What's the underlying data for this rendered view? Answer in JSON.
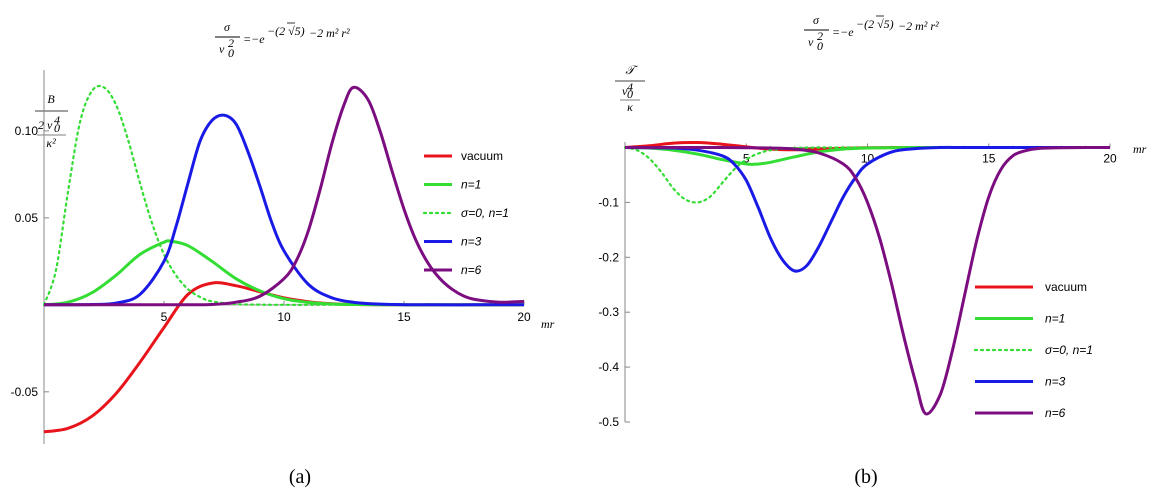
{
  "chart_data": [
    {
      "id": "a",
      "type": "line",
      "caption": "(a)",
      "title": {
        "lhs_num": "σ",
        "lhs_den": "v",
        "lhs_den_sub": "0",
        "lhs_den_sup": "2",
        "rhs": "=−e",
        "exp_main": "−(2 √5)",
        "exp_rest": "−2 m² r²"
      },
      "ylabel": {
        "num": "B",
        "den_lead": "2 v",
        "den_sub": "0",
        "den_sup": "4",
        "den_bottom": "κ²"
      },
      "xlabel": "mr",
      "xlim": [
        0,
        20
      ],
      "ylim": [
        -0.08,
        0.135
      ],
      "x_ticks": [
        5,
        10,
        15,
        20
      ],
      "x_tick_labels": [
        "5",
        "10",
        "15",
        "20"
      ],
      "y_ticks": [
        -0.05,
        0.05,
        0.1
      ],
      "y_tick_labels": [
        "-0.05",
        "0.05",
        "0.10"
      ],
      "legend_position": "top-right",
      "series": [
        {
          "name": "vacuum",
          "color": "#e8141b",
          "dashed": false,
          "x": [
            0,
            1,
            2,
            3,
            4,
            5,
            6,
            7,
            8,
            9,
            10,
            11,
            12,
            13,
            14,
            15,
            16,
            17,
            18,
            19,
            20
          ],
          "y": [
            -0.073,
            -0.071,
            -0.064,
            -0.051,
            -0.033,
            -0.013,
            0.006,
            0.0125,
            0.011,
            0.0075,
            0.004,
            0.0018,
            0.0006,
            0.0002,
            0.0001,
            0,
            0,
            0,
            0,
            0,
            0
          ]
        },
        {
          "name": "n=1",
          "color": "#33dd33",
          "dashed": false,
          "x": [
            0,
            1,
            2,
            3,
            4,
            5,
            5.3,
            6,
            7,
            8,
            9,
            10,
            11,
            12,
            13,
            14,
            15,
            16,
            17,
            18,
            19,
            20
          ],
          "y": [
            0,
            0.0015,
            0.007,
            0.017,
            0.029,
            0.036,
            0.0365,
            0.034,
            0.025,
            0.015,
            0.008,
            0.0035,
            0.0014,
            0.0005,
            0.0002,
            0.0001,
            0,
            0,
            0,
            0,
            0,
            0
          ]
        },
        {
          "name": "σ=0, n=1",
          "color": "#33dd33",
          "dashed": true,
          "x": [
            0,
            0.5,
            1,
            1.5,
            2,
            2.5,
            3,
            3.5,
            4,
            4.5,
            5,
            5.5,
            6,
            6.5,
            7,
            8,
            9,
            10,
            12,
            14,
            16,
            18,
            20
          ],
          "y": [
            0,
            0.02,
            0.065,
            0.105,
            0.123,
            0.125,
            0.115,
            0.095,
            0.07,
            0.047,
            0.029,
            0.017,
            0.009,
            0.0045,
            0.002,
            0.0004,
            0.0001,
            0,
            0,
            0,
            0,
            0,
            0
          ]
        },
        {
          "name": "n=3",
          "color": "#1a1ae6",
          "dashed": false,
          "x": [
            0,
            2,
            3,
            4,
            5,
            5.5,
            6,
            6.5,
            7,
            7.5,
            8,
            8.5,
            9,
            9.5,
            10,
            11,
            12,
            13,
            14,
            15,
            16,
            18,
            20
          ],
          "y": [
            0,
            0.0002,
            0.001,
            0.006,
            0.025,
            0.045,
            0.07,
            0.094,
            0.106,
            0.109,
            0.104,
            0.088,
            0.068,
            0.047,
            0.031,
            0.012,
            0.004,
            0.0013,
            0.0004,
            0.0001,
            0,
            0,
            0
          ]
        },
        {
          "name": "n=6",
          "color": "#7b0d80",
          "dashed": false,
          "x": [
            0,
            4,
            6,
            7,
            8,
            9,
            10,
            10.5,
            11,
            11.5,
            12,
            12.5,
            12.9,
            13.5,
            14,
            14.5,
            15,
            15.5,
            16,
            16.5,
            17,
            17.5,
            18,
            19,
            20
          ],
          "y": [
            0,
            0,
            0,
            0.0002,
            0.0015,
            0.005,
            0.015,
            0.025,
            0.042,
            0.066,
            0.093,
            0.115,
            0.125,
            0.118,
            0.1,
            0.077,
            0.055,
            0.037,
            0.024,
            0.015,
            0.009,
            0.005,
            0.003,
            0.0015,
            0.002
          ]
        }
      ]
    },
    {
      "id": "b",
      "type": "line",
      "caption": "(b)",
      "title": {
        "lhs_num": "σ",
        "lhs_den": "v",
        "lhs_den_sub": "0",
        "lhs_den_sup": "2",
        "rhs": "=−e",
        "exp_main": "−(2 √5)",
        "exp_rest": "−2 m² r²"
      },
      "ylabel": {
        "num": "𝒯",
        "den_lead": "v",
        "den_sub": "0",
        "den_sup": "4",
        "den_bottom": "κ"
      },
      "xlabel": "mr",
      "xlim": [
        0,
        20
      ],
      "ylim": [
        -0.5,
        0.01
      ],
      "x_ticks": [
        5,
        10,
        15,
        20
      ],
      "x_tick_labels": [
        "5",
        "10",
        "15",
        "20"
      ],
      "y_ticks": [
        -0.1,
        -0.2,
        -0.3,
        -0.4,
        -0.5
      ],
      "y_tick_labels": [
        "-0.1",
        "-0.2",
        "-0.3",
        "-0.4",
        "-0.5"
      ],
      "legend_position": "bottom-right",
      "series": [
        {
          "name": "vacuum",
          "color": "#e8141b",
          "dashed": false,
          "x": [
            0,
            1,
            2,
            3,
            4,
            5,
            6,
            7,
            8,
            9,
            10,
            12,
            14,
            16,
            18,
            20
          ],
          "y": [
            0,
            0.003,
            0.008,
            0.009,
            0.006,
            0.001,
            -0.003,
            -0.004,
            -0.003,
            -0.0015,
            -0.0005,
            0,
            0,
            0,
            0,
            0
          ]
        },
        {
          "name": "n=1",
          "color": "#33dd33",
          "dashed": false,
          "x": [
            0,
            1,
            2,
            3,
            4,
            5,
            5.5,
            6,
            7,
            8,
            9,
            10,
            11,
            12,
            14,
            16,
            18,
            20
          ],
          "y": [
            0,
            -0.001,
            -0.005,
            -0.012,
            -0.022,
            -0.03,
            -0.03,
            -0.027,
            -0.017,
            -0.008,
            -0.003,
            -0.001,
            -0.0003,
            0,
            0,
            0,
            0,
            0
          ]
        },
        {
          "name": "σ=0, n=1",
          "color": "#33dd33",
          "dashed": true,
          "x": [
            0,
            0.5,
            1,
            1.5,
            2,
            2.5,
            3,
            3.5,
            4,
            4.5,
            5,
            5.5,
            6,
            7,
            8,
            10,
            12,
            14,
            16,
            18,
            20
          ],
          "y": [
            0,
            -0.005,
            -0.02,
            -0.045,
            -0.075,
            -0.095,
            -0.1,
            -0.09,
            -0.065,
            -0.04,
            -0.022,
            -0.011,
            -0.005,
            -0.001,
            0,
            0,
            0,
            0,
            0,
            0,
            0
          ]
        },
        {
          "name": "n=3",
          "color": "#1a1ae6",
          "dashed": false,
          "x": [
            0,
            2,
            3,
            4,
            4.5,
            5,
            5.5,
            6,
            6.5,
            7,
            7.5,
            8,
            8.5,
            9,
            9.5,
            10,
            11,
            12,
            13,
            14,
            16,
            18,
            20
          ],
          "y": [
            0,
            -0.001,
            -0.005,
            -0.015,
            -0.03,
            -0.06,
            -0.11,
            -0.165,
            -0.205,
            -0.225,
            -0.215,
            -0.18,
            -0.135,
            -0.09,
            -0.055,
            -0.03,
            -0.008,
            -0.002,
            0,
            0,
            0,
            0,
            0
          ]
        },
        {
          "name": "n=6",
          "color": "#7b0d80",
          "dashed": false,
          "x": [
            0,
            4,
            6,
            7,
            8,
            9,
            9.5,
            10,
            10.5,
            11,
            11.5,
            12,
            12.4,
            13,
            13.5,
            14,
            14.5,
            15,
            15.5,
            16,
            16.5,
            17,
            18,
            19,
            20
          ],
          "y": [
            0,
            0,
            -0.001,
            -0.003,
            -0.01,
            -0.03,
            -0.055,
            -0.1,
            -0.165,
            -0.25,
            -0.345,
            -0.43,
            -0.485,
            -0.45,
            -0.37,
            -0.27,
            -0.17,
            -0.09,
            -0.04,
            -0.015,
            -0.006,
            -0.002,
            -0.0005,
            0,
            0
          ]
        }
      ]
    }
  ]
}
